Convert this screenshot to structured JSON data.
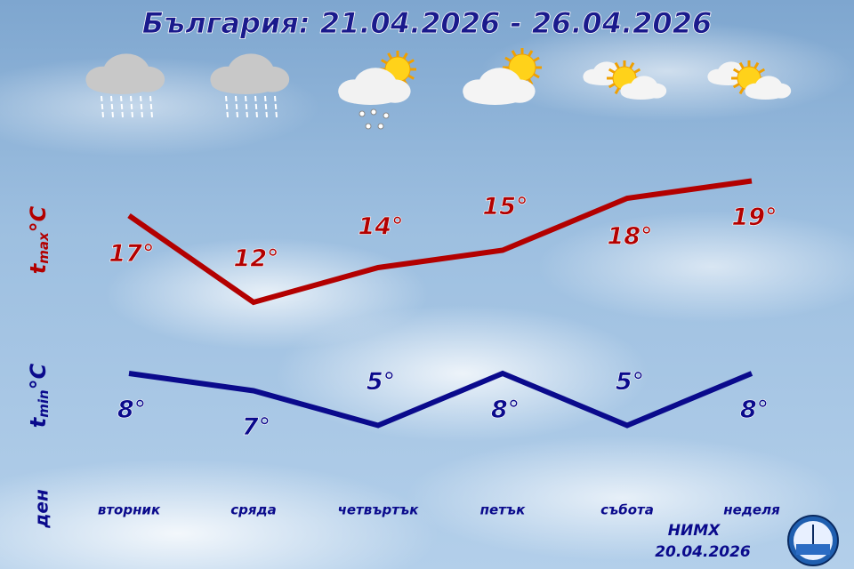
{
  "chart_data": {
    "type": "line",
    "title": "България: 21.04.2026 - 26.04.2026",
    "categories": [
      "вторник",
      "сряда",
      "четвъртък",
      "петък",
      "събота",
      "неделя"
    ],
    "x_label": "ден",
    "series": [
      {
        "name": "t",
        "subscript": "max",
        "unit": "°C",
        "color": "#b30000",
        "values": [
          17,
          12,
          14,
          15,
          18,
          19
        ],
        "value_labels": [
          "17°",
          "12°",
          "14°",
          "15°",
          "18°",
          "19°"
        ]
      },
      {
        "name": "t",
        "subscript": "min",
        "unit": "°C",
        "color": "#0a0a8c",
        "values": [
          8,
          7,
          5,
          8,
          5,
          8
        ],
        "value_labels": [
          "8°",
          "7°",
          "5°",
          "8°",
          "5°",
          "8°"
        ]
      }
    ],
    "source": "НИМХ",
    "issued": "20.04.2026"
  }
}
